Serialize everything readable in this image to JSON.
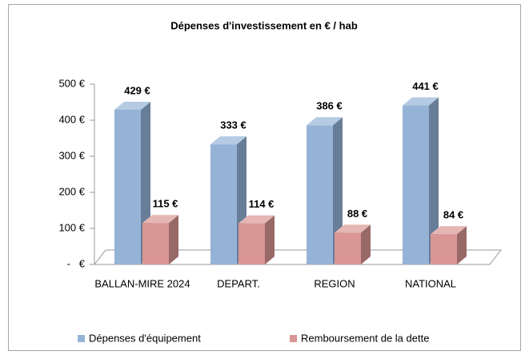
{
  "chart_data": {
    "type": "bar3d",
    "title": "Dépenses d'investissement en € / hab",
    "categories": [
      "BALLAN-MIRE 2024",
      "DEPART.",
      "REGION",
      "NATIONAL"
    ],
    "series": [
      {
        "name": "Dépenses d'équipement",
        "color": "#95b3d7",
        "values": [
          429,
          333,
          386,
          441
        ],
        "value_labels": [
          "429 €",
          "333 €",
          "386 €",
          "441 €"
        ]
      },
      {
        "name": "Remboursement de la dette",
        "color": "#d99694",
        "values": [
          115,
          114,
          88,
          84
        ],
        "value_labels": [
          "115 €",
          "114 €",
          "88 €",
          "84 €"
        ]
      }
    ],
    "ylim": [
      0,
      500
    ],
    "yticks": [
      {
        "value": 0,
        "label": "-   €"
      },
      {
        "value": 100,
        "label": "100 €"
      },
      {
        "value": 200,
        "label": "200 €"
      },
      {
        "value": 300,
        "label": "300 €"
      },
      {
        "value": 400,
        "label": "400 €"
      },
      {
        "value": 500,
        "label": "500 €"
      }
    ],
    "legend": "bottom"
  }
}
